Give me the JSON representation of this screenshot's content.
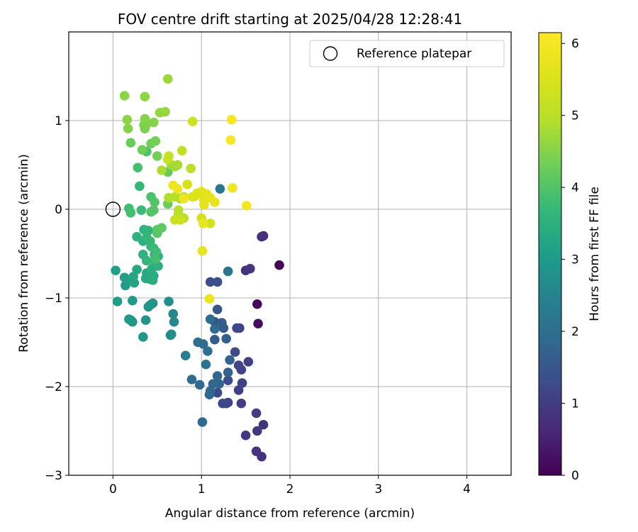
{
  "chart_data": {
    "type": "scatter",
    "title": "FOV centre drift starting at 2025/04/28 12:28:41",
    "xlabel": "Angular distance from reference (arcmin)",
    "ylabel": "Rotation from reference (arcmin)",
    "xlim": [
      -0.5,
      4.5
    ],
    "ylim": [
      -3.0,
      2.0
    ],
    "xticks": [
      0,
      1,
      2,
      3,
      4
    ],
    "yticks": [
      -3,
      -2,
      -1,
      0,
      1
    ],
    "grid": true,
    "legend": {
      "label": "Reference platepar",
      "placement": "top-right"
    },
    "reference_point": {
      "x": 0,
      "y": 0
    },
    "colorbar": {
      "label": "Hours from first FF file",
      "colormap": "viridis",
      "min": 0,
      "max": 6.15,
      "ticks": [
        0,
        1,
        2,
        3,
        4,
        5,
        6
      ]
    },
    "series": [
      {
        "points": [
          [
            1.88,
            -0.63,
            0.05
          ],
          [
            1.63,
            -1.07,
            0.1
          ],
          [
            1.64,
            -1.29,
            0.15
          ],
          [
            1.7,
            -0.3,
            0.7
          ],
          [
            1.68,
            -0.31,
            0.75
          ],
          [
            1.5,
            -0.69,
            0.8
          ],
          [
            1.55,
            -0.67,
            0.85
          ],
          [
            1.7,
            -2.43,
            0.8
          ],
          [
            1.68,
            -2.79,
            0.8
          ],
          [
            1.62,
            -2.73,
            0.85
          ],
          [
            1.63,
            -2.5,
            0.9
          ],
          [
            1.62,
            -2.3,
            0.95
          ],
          [
            1.5,
            -2.55,
            0.9
          ],
          [
            1.45,
            -2.19,
            1.0
          ],
          [
            1.42,
            -2.04,
            1.05
          ],
          [
            1.46,
            -1.96,
            1.1
          ],
          [
            1.53,
            -1.72,
            1.1
          ],
          [
            1.45,
            -1.81,
            1.15
          ],
          [
            1.42,
            -1.76,
            1.15
          ],
          [
            1.43,
            -1.34,
            1.1
          ],
          [
            1.4,
            -1.34,
            1.2
          ],
          [
            1.38,
            -1.61,
            1.25
          ],
          [
            1.3,
            -2.18,
            1.1
          ],
          [
            1.28,
            -2.19,
            1.15
          ],
          [
            1.24,
            -2.19,
            1.2
          ],
          [
            1.3,
            -1.93,
            1.3
          ],
          [
            1.18,
            -2.07,
            1.2
          ],
          [
            1.1,
            -0.82,
            1.3
          ],
          [
            1.18,
            -0.82,
            1.35
          ],
          [
            1.15,
            -1.27,
            1.4
          ],
          [
            1.18,
            -1.13,
            1.5
          ],
          [
            1.25,
            -1.34,
            1.55
          ],
          [
            1.23,
            -1.28,
            1.6
          ],
          [
            1.15,
            -1.47,
            1.6
          ],
          [
            1.28,
            -1.46,
            1.65
          ],
          [
            1.32,
            -1.7,
            1.7
          ],
          [
            1.3,
            -1.84,
            1.75
          ],
          [
            1.2,
            -1.97,
            1.75
          ],
          [
            1.18,
            -1.88,
            1.8
          ],
          [
            1.13,
            -1.97,
            1.85
          ],
          [
            1.1,
            -2.05,
            1.8
          ],
          [
            1.09,
            -2.09,
            1.85
          ],
          [
            1.01,
            -2.4,
            1.9
          ],
          [
            0.98,
            -1.98,
            1.9
          ],
          [
            0.89,
            -1.92,
            1.95
          ],
          [
            1.02,
            -1.52,
            1.95
          ],
          [
            0.96,
            -1.5,
            2.0
          ],
          [
            1.07,
            -1.6,
            2.05
          ],
          [
            1.05,
            -1.75,
            2.1
          ],
          [
            1.15,
            -1.35,
            1.95
          ],
          [
            1.1,
            -1.24,
            2.0
          ],
          [
            1.3,
            -0.7,
            2.15
          ],
          [
            1.21,
            0.23,
            2.2
          ],
          [
            0.82,
            -1.65,
            2.35
          ],
          [
            0.68,
            -1.18,
            2.6
          ],
          [
            0.69,
            -1.27,
            2.6
          ],
          [
            0.66,
            -1.41,
            2.65
          ],
          [
            0.65,
            -1.42,
            2.7
          ],
          [
            0.63,
            -1.04,
            2.75
          ],
          [
            0.45,
            -1.06,
            2.8
          ],
          [
            0.4,
            -1.1,
            2.85
          ],
          [
            0.42,
            -1.08,
            2.9
          ],
          [
            0.37,
            -1.25,
            2.85
          ],
          [
            0.34,
            -1.44,
            2.9
          ],
          [
            0.22,
            -1.27,
            2.85
          ],
          [
            0.2,
            -1.25,
            2.95
          ],
          [
            0.18,
            -1.24,
            3.0
          ],
          [
            0.22,
            -1.03,
            3.0
          ],
          [
            0.14,
            -0.86,
            3.0
          ],
          [
            0.05,
            -1.04,
            3.05
          ],
          [
            0.03,
            -0.69,
            3.1
          ],
          [
            0.13,
            -0.77,
            3.1
          ],
          [
            0.17,
            -0.8,
            3.15
          ],
          [
            0.24,
            -0.83,
            3.2
          ],
          [
            0.23,
            -0.76,
            3.25
          ],
          [
            0.27,
            -0.68,
            3.3
          ],
          [
            0.37,
            -0.78,
            3.3
          ],
          [
            0.42,
            -0.79,
            3.35
          ],
          [
            0.38,
            -0.72,
            3.35
          ],
          [
            0.46,
            -0.75,
            3.4
          ],
          [
            0.45,
            -0.8,
            3.45
          ],
          [
            0.44,
            -0.67,
            3.45
          ],
          [
            0.51,
            -0.64,
            3.5
          ],
          [
            0.51,
            -0.53,
            3.5
          ],
          [
            0.47,
            -0.58,
            3.55
          ],
          [
            0.47,
            -0.51,
            3.6
          ],
          [
            0.43,
            -0.42,
            3.6
          ],
          [
            0.38,
            -0.58,
            3.65
          ],
          [
            0.34,
            -0.51,
            3.55
          ],
          [
            0.34,
            -0.36,
            3.5
          ],
          [
            0.27,
            -0.31,
            3.55
          ],
          [
            0.35,
            -0.23,
            3.55
          ],
          [
            0.4,
            -0.24,
            3.6
          ],
          [
            0.38,
            -0.32,
            3.65
          ],
          [
            0.42,
            -0.36,
            3.7
          ],
          [
            0.46,
            -0.44,
            3.75
          ],
          [
            0.49,
            -0.48,
            3.8
          ],
          [
            0.48,
            -0.56,
            3.85
          ],
          [
            0.3,
            0.26,
            3.7
          ],
          [
            0.32,
            -0.01,
            3.75
          ],
          [
            0.18,
            0.01,
            3.8
          ],
          [
            0.2,
            -0.04,
            3.85
          ],
          [
            0.28,
            0.47,
            3.9
          ],
          [
            0.43,
            0.14,
            3.95
          ],
          [
            0.38,
            0.65,
            3.95
          ],
          [
            0.47,
            0.08,
            4.0
          ],
          [
            0.43,
            -0.03,
            4.05
          ],
          [
            0.46,
            -0.01,
            4.05
          ],
          [
            0.5,
            -0.23,
            4.1
          ],
          [
            0.55,
            -0.21,
            4.15
          ],
          [
            0.5,
            -0.27,
            4.1
          ],
          [
            0.62,
            0.42,
            4.2
          ],
          [
            0.62,
            0.06,
            4.25
          ],
          [
            0.2,
            0.75,
            4.25
          ],
          [
            0.33,
            0.67,
            4.3
          ],
          [
            0.43,
            0.74,
            4.3
          ],
          [
            0.48,
            0.77,
            4.35
          ],
          [
            0.5,
            0.6,
            4.35
          ],
          [
            0.36,
            0.91,
            4.4
          ],
          [
            0.35,
            0.95,
            4.4
          ],
          [
            0.38,
            0.96,
            4.45
          ],
          [
            0.36,
            1.02,
            4.5
          ],
          [
            0.46,
            0.98,
            4.5
          ],
          [
            0.17,
            0.91,
            4.5
          ],
          [
            0.16,
            1.01,
            4.55
          ],
          [
            0.13,
            1.28,
            4.55
          ],
          [
            0.36,
            1.27,
            4.6
          ],
          [
            0.53,
            1.09,
            4.6
          ],
          [
            0.59,
            1.1,
            4.65
          ],
          [
            0.62,
            1.47,
            4.7
          ],
          [
            0.66,
            0.5,
            4.7
          ],
          [
            0.7,
            0.48,
            4.75
          ],
          [
            0.73,
            0.5,
            4.8
          ],
          [
            0.76,
            0.12,
            4.8
          ],
          [
            0.55,
            0.44,
            4.85
          ],
          [
            0.63,
            0.13,
            4.9
          ],
          [
            0.7,
            0.14,
            4.95
          ],
          [
            0.74,
            -0.05,
            4.95
          ],
          [
            0.74,
            -0.01,
            5.0
          ],
          [
            0.8,
            -0.1,
            5.0
          ],
          [
            0.8,
            0.14,
            5.05
          ],
          [
            0.88,
            0.46,
            5.05
          ],
          [
            0.78,
            0.66,
            5.1
          ],
          [
            0.63,
            0.6,
            5.2
          ],
          [
            0.62,
            0.56,
            5.2
          ],
          [
            0.7,
            -0.12,
            5.25
          ],
          [
            0.76,
            -0.12,
            5.3
          ],
          [
            0.9,
            0.99,
            5.3
          ],
          [
            1.0,
            0.18,
            5.35
          ],
          [
            1.1,
            -0.16,
            5.4
          ],
          [
            1.0,
            -0.1,
            5.4
          ],
          [
            0.84,
            0.28,
            5.45
          ],
          [
            0.9,
            0.14,
            5.5
          ],
          [
            0.93,
            0.15,
            5.55
          ],
          [
            0.95,
            0.18,
            5.55
          ],
          [
            1.0,
            0.2,
            5.6
          ],
          [
            1.03,
            0.1,
            5.6
          ],
          [
            1.06,
            0.17,
            5.65
          ],
          [
            1.03,
            0.05,
            5.7
          ],
          [
            1.1,
            0.13,
            5.7
          ],
          [
            1.15,
            0.08,
            5.75
          ],
          [
            1.01,
            -0.47,
            5.75
          ],
          [
            1.02,
            -0.16,
            5.8
          ],
          [
            1.09,
            -1.01,
            5.8
          ],
          [
            0.68,
            0.27,
            5.85
          ],
          [
            0.73,
            0.23,
            5.9
          ],
          [
            0.8,
            0.12,
            5.9
          ],
          [
            1.35,
            0.24,
            5.9
          ],
          [
            1.51,
            0.04,
            6.0
          ],
          [
            1.34,
            1.01,
            6.05
          ],
          [
            1.33,
            0.78,
            6.1
          ]
        ]
      }
    ]
  }
}
